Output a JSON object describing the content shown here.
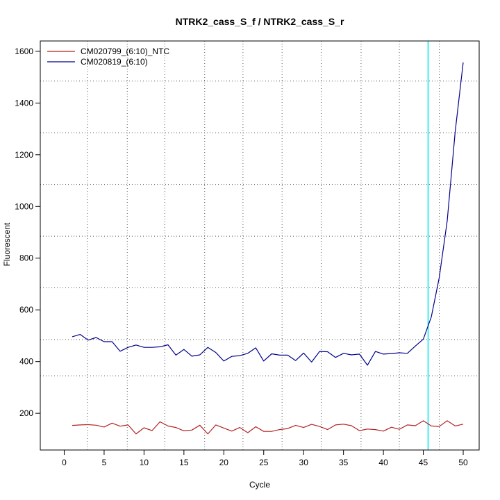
{
  "chart_data": {
    "type": "line",
    "title": "NTRK2_cass_S_f / NTRK2_cass_S_r",
    "xlabel": "Cycle",
    "ylabel": "Fluorescent",
    "xlim": [
      -3,
      52
    ],
    "ylim": [
      58,
      1640
    ],
    "xticks": [
      0,
      5,
      10,
      15,
      20,
      25,
      30,
      35,
      40,
      45,
      50
    ],
    "yticks": [
      200,
      400,
      600,
      800,
      1000,
      1200,
      1400,
      1600
    ],
    "grid": "dotted",
    "grid_x": [
      2.9,
      7.9,
      12.6,
      17.6,
      22.4,
      27.3,
      32.2,
      37.2,
      42.0,
      47.0
    ],
    "grid_y": [
      1485,
      1285,
      1085,
      885,
      685,
      485,
      345
    ],
    "threshold_cycle": 45.6,
    "threshold_color": "#00e5ee",
    "legend_position": "top-left",
    "x": [
      1,
      2,
      3,
      4,
      5,
      6,
      7,
      8,
      9,
      10,
      11,
      12,
      13,
      14,
      15,
      16,
      17,
      18,
      19,
      20,
      21,
      22,
      23,
      24,
      25,
      26,
      27,
      28,
      29,
      30,
      31,
      32,
      33,
      34,
      35,
      36,
      37,
      38,
      39,
      40,
      41,
      42,
      43,
      44,
      45,
      46,
      47,
      48,
      49,
      50
    ],
    "series": [
      {
        "name": "CM020799_(6:10)_NTC",
        "color": "#b22222",
        "values": [
          153,
          155,
          156,
          154,
          147,
          162,
          150,
          155,
          120,
          144,
          133,
          167,
          151,
          145,
          132,
          135,
          154,
          120,
          155,
          143,
          131,
          145,
          125,
          148,
          130,
          130,
          137,
          141,
          153,
          145,
          157,
          149,
          137,
          155,
          158,
          152,
          133,
          139,
          137,
          131,
          146,
          138,
          155,
          152,
          171,
          151,
          149,
          171,
          151,
          158
        ]
      },
      {
        "name": "CM020819_(6:10)",
        "color": "#00008b",
        "values": [
          496,
          505,
          483,
          493,
          477,
          477,
          440,
          455,
          464,
          455,
          455,
          457,
          465,
          425,
          447,
          421,
          426,
          455,
          435,
          402,
          420,
          423,
          432,
          453,
          402,
          430,
          425,
          425,
          404,
          433,
          398,
          439,
          438,
          416,
          432,
          426,
          429,
          386,
          439,
          429,
          431,
          434,
          432,
          460,
          487,
          573,
          725,
          945,
          1290,
          1557
        ]
      }
    ]
  }
}
